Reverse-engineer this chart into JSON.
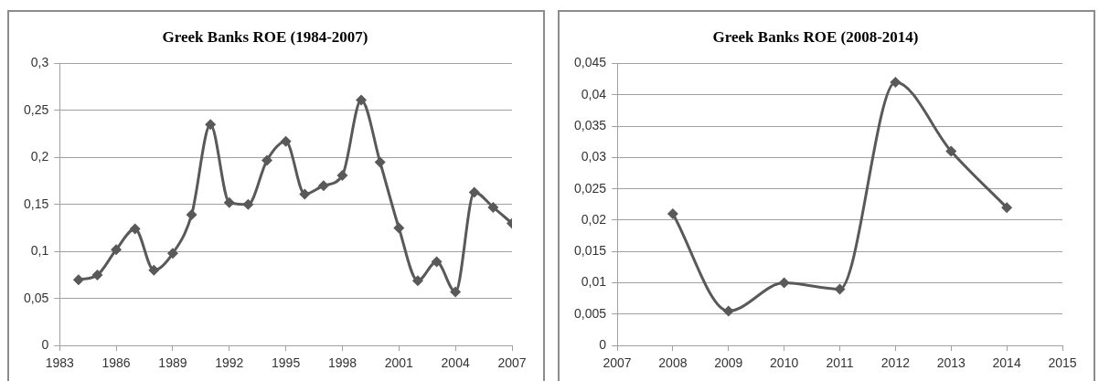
{
  "chart_data": [
    {
      "type": "line",
      "title": "Greek Banks ROE (1984-2007)",
      "x": [
        1984,
        1985,
        1986,
        1987,
        1988,
        1989,
        1990,
        1991,
        1992,
        1993,
        1994,
        1995,
        1996,
        1997,
        1998,
        1999,
        2000,
        2001,
        2002,
        2003,
        2004,
        2005,
        2006,
        2007
      ],
      "series": [
        {
          "color": "#595959",
          "values": [
            0.07,
            0.075,
            0.102,
            0.124,
            0.08,
            0.098,
            0.139,
            0.235,
            0.152,
            0.15,
            0.197,
            0.217,
            0.161,
            0.17,
            0.181,
            0.261,
            0.195,
            0.125,
            0.069,
            0.089,
            0.057,
            0.163,
            0.147,
            0.13
          ]
        }
      ],
      "xlim": [
        1983,
        2007
      ],
      "xticks": [
        1983,
        1986,
        1989,
        1992,
        1995,
        1998,
        2001,
        2004,
        2007
      ],
      "ylim": [
        0,
        0.3
      ],
      "yticks": [
        0,
        {
          "value": 0.05,
          "label": "0,05"
        },
        {
          "value": 0.1,
          "label": "0,1"
        },
        {
          "value": 0.15,
          "label": "0,15"
        },
        {
          "value": 0.2,
          "label": "0,2"
        },
        {
          "value": 0.25,
          "label": "0,25"
        },
        {
          "value": 0.3,
          "label": "0,3"
        }
      ],
      "grid": "y",
      "legend": false,
      "marker": "diamond",
      "line_style": "solid"
    },
    {
      "type": "line",
      "title": "Greek Banks ROE (2008-2014)",
      "x": [
        2008,
        2009,
        2010,
        2011,
        2012,
        2013,
        2014
      ],
      "series": [
        {
          "color": "#595959",
          "values": [
            0.021,
            0.0055,
            0.01,
            0.009,
            0.042,
            0.031,
            0.022
          ]
        }
      ],
      "xlim": [
        2007,
        2015
      ],
      "xticks": [
        2007,
        2008,
        2009,
        2010,
        2011,
        2012,
        2013,
        2014,
        2015
      ],
      "ylim": [
        0,
        0.045
      ],
      "yticks": [
        0,
        {
          "value": 0.005,
          "label": "0,005"
        },
        {
          "value": 0.01,
          "label": "0,01"
        },
        {
          "value": 0.015,
          "label": "0,015"
        },
        {
          "value": 0.02,
          "label": "0,02"
        },
        {
          "value": 0.025,
          "label": "0,025"
        },
        {
          "value": 0.03,
          "label": "0,03"
        },
        {
          "value": 0.035,
          "label": "0,035"
        },
        {
          "value": 0.04,
          "label": "0,04"
        },
        {
          "value": 0.045,
          "label": "0,045"
        }
      ],
      "grid": "y",
      "legend": false,
      "marker": "diamond",
      "line_style": "solid"
    }
  ]
}
